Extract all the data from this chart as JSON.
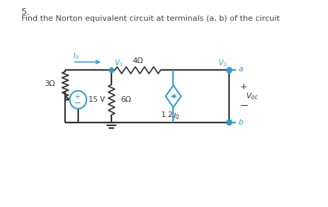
{
  "title_number": "5.",
  "title_text": "Find the Norton equivalent circuit at terminals (a, b) of the circuit",
  "background_color": "#ffffff",
  "circuit_color": "#333333",
  "highlight_color": "#3399cc",
  "resistor_3_label": "3Ω",
  "resistor_6_label": "6Ω",
  "resistor_4_label": "4Ω",
  "voltage_label": "15 V",
  "current_source_label": "1.2",
  "I0_sub": "I",
  "I0_sub2": "0",
  "V1_label": "V",
  "V2_label": "V",
  "I0_label": "I",
  "Voc_label": "V",
  "a_label": "a",
  "b_label": "b"
}
